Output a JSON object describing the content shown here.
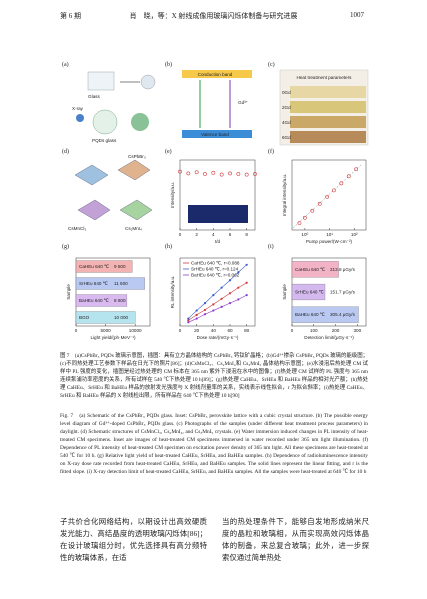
{
  "header": {
    "issue": "第 6 期",
    "running_title": "肖　晓，等：X 射线成像用玻璃闪烁体制备与研究进展",
    "page": "1007"
  },
  "figure": {
    "panel_labels": [
      "(a)",
      "(b)",
      "(c)",
      "(d)",
      "(e)",
      "(f)",
      "(g)",
      "(h)",
      "(i)"
    ],
    "a": {
      "labels": [
        "Glass",
        "X-ray",
        "PQDs glass"
      ]
    },
    "b": {
      "labels": [
        "Conduction band",
        "Valence band",
        "Gd³⁺"
      ]
    },
    "c": {
      "title": "Heat treatment parameters",
      "rows": [
        "0Gd",
        "2Gd",
        "4Gd",
        "6Gd"
      ]
    },
    "d": {
      "labels": [
        "CsPbBr₃",
        "CsMnCl₃",
        "Cs₂MnI₄"
      ]
    },
    "e": {
      "type": "scatter",
      "ylabel": "Intensity/a.u.",
      "xlabel": "t/d",
      "xlim": [
        0,
        9
      ],
      "xticks": [
        0,
        2,
        4,
        6,
        8
      ],
      "ylim": [
        0,
        1.2
      ],
      "x": [
        0,
        1,
        2,
        3,
        4,
        5,
        6,
        7,
        8,
        9
      ],
      "values": [
        1.0,
        0.97,
        0.99,
        0.96,
        0.98,
        0.95,
        0.97,
        0.96,
        0.95,
        0.96
      ],
      "color": "#d23a3a"
    },
    "f": {
      "type": "scatter",
      "ylabel": "Integral intensity/a.u.",
      "xlabel": "Pump power/(W·cm⁻²)",
      "log": true,
      "xlim": [
        0.3,
        300
      ],
      "xticks": [
        {
          "value": 1,
          "label": "10⁰"
        },
        {
          "value": 10,
          "label": "10¹"
        },
        {
          "value": 100,
          "label": "10²"
        }
      ],
      "ylim": [
        0.3,
        300
      ],
      "x": [
        0.6,
        1,
        2,
        4,
        8,
        15,
        30,
        60,
        120
      ],
      "values": [
        0.6,
        1,
        2,
        4,
        8,
        15,
        30,
        60,
        120
      ],
      "color": "#d23a3a"
    },
    "g": {
      "type": "hbar",
      "ylabel": "Sample",
      "xlabel": "Light yield/(ph·MeV⁻¹)",
      "xlim": [
        0,
        12500
      ],
      "xticks": [
        0,
        5000,
        10000
      ],
      "categories": [
        "CaHEu 640 ℃",
        "SrHEu 640 ℃",
        "BaHEu 640 ℃",
        "BGO"
      ],
      "values": [
        9500,
        11600,
        8600,
        10000
      ],
      "value_labels": [
        "9 500",
        "11 600",
        "8 600",
        "10 000"
      ],
      "colors": [
        "#f3b3b3",
        "#b9c9f2",
        "#d9b9ef",
        "#b6e4ee"
      ]
    },
    "h": {
      "type": "line",
      "ylabel": "RL intensity/a.u.",
      "xlabel": "Dose rate/(mGy·s⁻¹)",
      "xlim": [
        0,
        90
      ],
      "xticks": [
        0,
        20,
        40,
        60,
        80
      ],
      "ylim": [
        0,
        11
      ],
      "x": [
        10,
        20,
        30,
        40,
        50,
        60,
        70,
        80
      ],
      "series": [
        {
          "name": "CaHEu 640 ℃, r=0.088",
          "color": "#d23a3a",
          "values": [
            0.9,
            1.8,
            2.6,
            3.5,
            4.4,
            5.3,
            6.2,
            7.0
          ]
        },
        {
          "name": "SrHEu 640 ℃, r=0.124",
          "color": "#3a5bd2",
          "values": [
            1.2,
            2.5,
            3.7,
            5.0,
            6.2,
            7.4,
            8.7,
            9.9
          ]
        },
        {
          "name": "BaHEu 640 ℃, r=0.062",
          "color": "#8a3ad2",
          "values": [
            0.6,
            1.2,
            1.9,
            2.5,
            3.1,
            3.7,
            4.3,
            5.0
          ]
        }
      ]
    },
    "i": {
      "type": "hbar",
      "ylabel": "Sample",
      "xlabel": "Detection limit/(μGy·s⁻¹)",
      "xlim": [
        0,
        340
      ],
      "xticks": [
        0,
        100,
        200,
        300
      ],
      "categories": [
        "CaHEu 640 ℃",
        "SrHEu 640 ℃",
        "BaHEu 640 ℃"
      ],
      "values": [
        213.8,
        151.7,
        305.4
      ],
      "value_labels": [
        "213.8 μGy/s",
        "151.7 μGy/s",
        "305.4 μGy/s"
      ],
      "colors": [
        "#f3b3c6",
        "#d4b9ef",
        "#b9c9f2"
      ]
    }
  },
  "caption_zh": "图 7　(a)CsPbBr₃ PQDs 玻璃示意图，插图：具有立方晶体结构的 CsPbBr₃ 钙钛矿晶格；(b)Gd³⁺掺杂 CsPbBr₃ PQDs 玻璃的能级图；(c)不同热处理工艺参数下样品在日光下的照片[86]；(d)CsMnCl₃、Cs₂MnI₄和 Cs₃MnI₅ 晶体结构示意图；(e)水浸泡后热处理 CM 试样中 PL 强度的变化，插图是经过热处理的 CM 标本在 365 nm 紫外下浸泡在水中的图像；(f)热处理 CM 试样的 PL 强度与 365 nm 连续泵浦功率密度的关系，所有试样在 540 ℃下热处理 10 h[89]；(g)热处理 CaHEu、SrHEu 和 BaHEu 样品的相对光产额；(h)热处理 CaHEu、SrHEu 和 BaHEu 样品的放射发光强度与 X 射线剂量率的关系，实线表示线性拟合，r 为拟合斜率；(i)热处理 CaHEu、SrHEu 和 BaHEu 样品的 X 射线检出限，所有样品在 640 ℃下热处理 10 h[90]",
  "caption_en": "Fig. 7　(a) Schematic of the CsPbBr₃ PQDs glass. Inset: CsPbBr₃ perovskite lattice with a cubic crystal structure. (b) The possible energy level diagram of Gd³⁺-doped CsPbBr₃ PQDs glass. (c) Photographs of the samples (under different heat treatment process parameters) in daylight. (d) Schematic structures of CsMnCl₃, Cs₂MnI₄, and Cs₃MnI₅ crystals. (e) Water immersion induced changes in PL intensity of heat-treated CM specimens. Inset are images of heat-treated CM specimens immersed in water recorded under 365 nm light illumination. (f) Dependence of PL intensity of heat-treated CM specimen on excitation power density of 365 nm light. All these specimens are heat-treated at 540 ℃ for 10 h. (g) Relative light yield of heat-treated CaHEu, SrHEu, and BaHEu samples. (h) Dependence of radioluminescence intensity on X-ray dose rate recorded from heat-treated CaHEu, SrHEu, and BaHEu samples. The solid lines represent the linear fitting, and r is the fitted slope. (i) X-ray detection limit of heat-treated CaHEu, SrHEu, and BaHEu samples. All the samples were heat-treated at 640 ℃ for 10 h",
  "body": {
    "left": "子共价合化网络结构，以期设计出高效硬质发光能力、高结晶度的透明玻璃闪烁体[86]；在设计玻璃组分时，优先选择具有高分频特性的玻璃体系，在适",
    "right": "当的热处理条件下，能够自发地形成纳米尺度的晶粒和玻璃相，从而实现高效闪烁体晶体的制备，来总复合玻璃；此外，进一步探索仅通过简单热处"
  }
}
